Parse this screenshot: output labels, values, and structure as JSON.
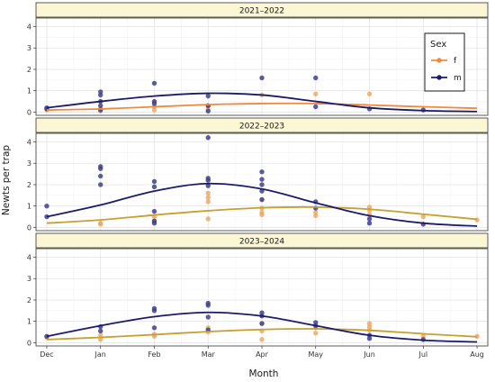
{
  "chart_data": {
    "type": "scatter",
    "xlabel": "Month",
    "ylabel": "Newts per trap",
    "x_ticks": [
      "Dec",
      "Jan",
      "Feb",
      "Mar",
      "Apr",
      "May",
      "Jun",
      "Jul",
      "Aug"
    ],
    "xlim": [
      -0.2,
      8.2
    ],
    "ylim": [
      -0.15,
      4.4
    ],
    "y_ticks": [
      "0",
      "1",
      "2",
      "3",
      "4"
    ],
    "grid": true,
    "legend": {
      "title": "Sex",
      "placement": "top-right",
      "items": [
        {
          "label": "f",
          "color": "#f08a3a"
        },
        {
          "label": "m",
          "color": "#1b1a6b"
        }
      ]
    },
    "colors": {
      "f_points": "#e8a860",
      "m_points": "#3f3f8f"
    },
    "panels": [
      {
        "title": "2021–2022",
        "f_curve_color": "#f08a3a",
        "m_curve_color": "#1b1a6b",
        "f_points": [
          {
            "x": 0,
            "y": 0.1
          },
          {
            "x": 1,
            "y": 0.15
          },
          {
            "x": 1,
            "y": 0.05
          },
          {
            "x": 2,
            "y": 0.25
          },
          {
            "x": 2,
            "y": 0.1
          },
          {
            "x": 3,
            "y": 0.3
          },
          {
            "x": 3,
            "y": 0.15
          },
          {
            "x": 4,
            "y": 0.8
          },
          {
            "x": 5,
            "y": 0.85
          },
          {
            "x": 6,
            "y": 0.85
          }
        ],
        "m_points": [
          {
            "x": 0,
            "y": 0.2
          },
          {
            "x": 0,
            "y": 0.15
          },
          {
            "x": 1,
            "y": 0.95
          },
          {
            "x": 1,
            "y": 0.8
          },
          {
            "x": 1,
            "y": 0.5
          },
          {
            "x": 1,
            "y": 0.3
          },
          {
            "x": 1,
            "y": 0.1
          },
          {
            "x": 2,
            "y": 1.35
          },
          {
            "x": 2,
            "y": 0.5
          },
          {
            "x": 2,
            "y": 0.4
          },
          {
            "x": 3,
            "y": 0.75
          },
          {
            "x": 3,
            "y": 0.3
          },
          {
            "x": 3,
            "y": 0.05
          },
          {
            "x": 4,
            "y": 1.6
          },
          {
            "x": 5,
            "y": 1.6
          },
          {
            "x": 5,
            "y": 0.25
          },
          {
            "x": 6,
            "y": 0.15
          },
          {
            "x": 7,
            "y": 0.1
          }
        ],
        "f_curve": [
          {
            "x": 0,
            "y": 0.1
          },
          {
            "x": 1,
            "y": 0.15
          },
          {
            "x": 2,
            "y": 0.25
          },
          {
            "x": 3,
            "y": 0.35
          },
          {
            "x": 4,
            "y": 0.4
          },
          {
            "x": 5,
            "y": 0.4
          },
          {
            "x": 6,
            "y": 0.33
          },
          {
            "x": 7,
            "y": 0.25
          },
          {
            "x": 8,
            "y": 0.18
          }
        ],
        "m_curve": [
          {
            "x": 0,
            "y": 0.2
          },
          {
            "x": 1,
            "y": 0.5
          },
          {
            "x": 2,
            "y": 0.75
          },
          {
            "x": 3,
            "y": 0.88
          },
          {
            "x": 4,
            "y": 0.8
          },
          {
            "x": 5,
            "y": 0.5
          },
          {
            "x": 6,
            "y": 0.2
          },
          {
            "x": 7,
            "y": 0.07
          },
          {
            "x": 8,
            "y": 0.03
          }
        ]
      },
      {
        "title": "2022–2023",
        "f_curve_color": "#c8a030",
        "m_curve_color": "#1b1a6b",
        "f_points": [
          {
            "x": 1,
            "y": 0.2
          },
          {
            "x": 1,
            "y": 0.15
          },
          {
            "x": 2,
            "y": 0.5
          },
          {
            "x": 2,
            "y": 0.3
          },
          {
            "x": 3,
            "y": 1.6
          },
          {
            "x": 3,
            "y": 1.4
          },
          {
            "x": 3,
            "y": 1.2
          },
          {
            "x": 3,
            "y": 0.4
          },
          {
            "x": 4,
            "y": 1.3
          },
          {
            "x": 4,
            "y": 0.9
          },
          {
            "x": 4,
            "y": 0.7
          },
          {
            "x": 4,
            "y": 0.6
          },
          {
            "x": 5,
            "y": 0.7
          },
          {
            "x": 5,
            "y": 0.55
          },
          {
            "x": 6,
            "y": 0.95
          },
          {
            "x": 6,
            "y": 0.8
          },
          {
            "x": 6,
            "y": 0.6
          },
          {
            "x": 7,
            "y": 0.5
          },
          {
            "x": 8,
            "y": 0.35
          }
        ],
        "m_points": [
          {
            "x": 0,
            "y": 1.0
          },
          {
            "x": 0,
            "y": 0.5
          },
          {
            "x": 1,
            "y": 2.85
          },
          {
            "x": 1,
            "y": 2.75
          },
          {
            "x": 1,
            "y": 2.4
          },
          {
            "x": 1,
            "y": 2.0
          },
          {
            "x": 2,
            "y": 2.15
          },
          {
            "x": 2,
            "y": 1.9
          },
          {
            "x": 2,
            "y": 0.75
          },
          {
            "x": 2,
            "y": 0.3
          },
          {
            "x": 2,
            "y": 0.2
          },
          {
            "x": 3,
            "y": 4.2
          },
          {
            "x": 3,
            "y": 2.3
          },
          {
            "x": 3,
            "y": 2.2
          },
          {
            "x": 3,
            "y": 1.95
          },
          {
            "x": 4,
            "y": 2.6
          },
          {
            "x": 4,
            "y": 2.25
          },
          {
            "x": 4,
            "y": 2.0
          },
          {
            "x": 4,
            "y": 1.7
          },
          {
            "x": 4,
            "y": 1.3
          },
          {
            "x": 5,
            "y": 1.2
          },
          {
            "x": 5,
            "y": 0.9
          },
          {
            "x": 6,
            "y": 0.4
          },
          {
            "x": 6,
            "y": 0.2
          },
          {
            "x": 7,
            "y": 0.15
          }
        ],
        "f_curve": [
          {
            "x": 0,
            "y": 0.2
          },
          {
            "x": 1,
            "y": 0.35
          },
          {
            "x": 2,
            "y": 0.58
          },
          {
            "x": 3,
            "y": 0.78
          },
          {
            "x": 4,
            "y": 0.92
          },
          {
            "x": 5,
            "y": 0.95
          },
          {
            "x": 6,
            "y": 0.85
          },
          {
            "x": 7,
            "y": 0.62
          },
          {
            "x": 8,
            "y": 0.38
          }
        ],
        "m_curve": [
          {
            "x": 0,
            "y": 0.5
          },
          {
            "x": 1,
            "y": 1.05
          },
          {
            "x": 2,
            "y": 1.7
          },
          {
            "x": 3,
            "y": 2.05
          },
          {
            "x": 4,
            "y": 1.8
          },
          {
            "x": 5,
            "y": 1.15
          },
          {
            "x": 6,
            "y": 0.55
          },
          {
            "x": 7,
            "y": 0.2
          },
          {
            "x": 8,
            "y": 0.06
          }
        ]
      },
      {
        "title": "2023–2024",
        "f_curve_color": "#c8a030",
        "m_curve_color": "#1b1a6b",
        "f_points": [
          {
            "x": 0,
            "y": 0.25
          },
          {
            "x": 1,
            "y": 0.35
          },
          {
            "x": 1,
            "y": 0.15
          },
          {
            "x": 2,
            "y": 0.4
          },
          {
            "x": 2,
            "y": 0.3
          },
          {
            "x": 3,
            "y": 0.7
          },
          {
            "x": 3,
            "y": 0.5
          },
          {
            "x": 4,
            "y": 0.9
          },
          {
            "x": 4,
            "y": 0.55
          },
          {
            "x": 4,
            "y": 0.15
          },
          {
            "x": 5,
            "y": 0.7
          },
          {
            "x": 5,
            "y": 0.45
          },
          {
            "x": 6,
            "y": 0.9
          },
          {
            "x": 6,
            "y": 0.75
          },
          {
            "x": 6,
            "y": 0.6
          },
          {
            "x": 7,
            "y": 0.3
          },
          {
            "x": 8,
            "y": 0.3
          }
        ],
        "m_points": [
          {
            "x": 0,
            "y": 0.3
          },
          {
            "x": 1,
            "y": 0.75
          },
          {
            "x": 1,
            "y": 0.55
          },
          {
            "x": 2,
            "y": 1.6
          },
          {
            "x": 2,
            "y": 1.5
          },
          {
            "x": 2,
            "y": 0.7
          },
          {
            "x": 3,
            "y": 1.85
          },
          {
            "x": 3,
            "y": 1.75
          },
          {
            "x": 3,
            "y": 1.2
          },
          {
            "x": 3,
            "y": 0.6
          },
          {
            "x": 4,
            "y": 1.4
          },
          {
            "x": 4,
            "y": 1.25
          },
          {
            "x": 4,
            "y": 0.9
          },
          {
            "x": 5,
            "y": 0.95
          },
          {
            "x": 5,
            "y": 0.8
          },
          {
            "x": 6,
            "y": 0.35
          },
          {
            "x": 6,
            "y": 0.2
          },
          {
            "x": 7,
            "y": 0.15
          }
        ],
        "f_curve": [
          {
            "x": 0,
            "y": 0.15
          },
          {
            "x": 1,
            "y": 0.25
          },
          {
            "x": 2,
            "y": 0.38
          },
          {
            "x": 3,
            "y": 0.52
          },
          {
            "x": 4,
            "y": 0.62
          },
          {
            "x": 5,
            "y": 0.65
          },
          {
            "x": 6,
            "y": 0.58
          },
          {
            "x": 7,
            "y": 0.42
          },
          {
            "x": 8,
            "y": 0.28
          }
        ],
        "m_curve": [
          {
            "x": 0,
            "y": 0.3
          },
          {
            "x": 1,
            "y": 0.8
          },
          {
            "x": 2,
            "y": 1.22
          },
          {
            "x": 3,
            "y": 1.42
          },
          {
            "x": 4,
            "y": 1.25
          },
          {
            "x": 5,
            "y": 0.8
          },
          {
            "x": 6,
            "y": 0.35
          },
          {
            "x": 7,
            "y": 0.12
          },
          {
            "x": 8,
            "y": 0.04
          }
        ]
      }
    ]
  }
}
